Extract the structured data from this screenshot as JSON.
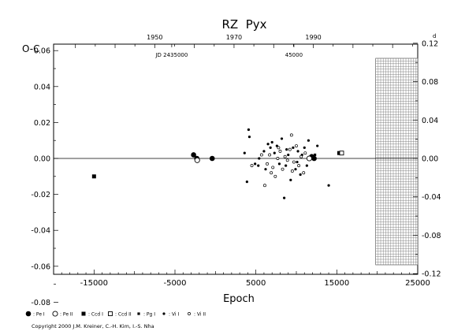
{
  "chart_data": {
    "type": "scatter",
    "title": "RZ  Pyx",
    "xlabel": "Epoch",
    "ylabel": "O-C",
    "right_unit": "d",
    "xlim": [
      -20000,
      25000
    ],
    "ylim": [
      -0.08,
      0.12
    ],
    "x_ticks": [
      {
        "value": -15000,
        "label": "-15000"
      },
      {
        "value": -5000,
        "label": "-5000"
      },
      {
        "value": 5000,
        "label": "5000"
      },
      {
        "value": 15000,
        "label": "15000"
      },
      {
        "value": 25000,
        "label": "25000"
      }
    ],
    "y_ticks_left": [
      {
        "value": -0.08,
        "label": "-0.08"
      },
      {
        "value": -0.06,
        "label": "-0.06"
      },
      {
        "value": -0.04,
        "label": "-0.04"
      },
      {
        "value": -0.02,
        "label": "-0.02"
      },
      {
        "value": 0.0,
        "label": "0.00"
      },
      {
        "value": 0.02,
        "label": "0.02"
      },
      {
        "value": 0.04,
        "label": "0.04"
      },
      {
        "value": 0.06,
        "label": "0.06"
      }
    ],
    "y_ticks_right": [
      {
        "value": -0.12,
        "label": "-0.12"
      },
      {
        "value": -0.08,
        "label": "-0.08"
      },
      {
        "value": -0.04,
        "label": "-0.04"
      },
      {
        "value": 0.0,
        "label": "0.00"
      },
      {
        "value": 0.04,
        "label": "0.04"
      },
      {
        "value": 0.08,
        "label": "0.08"
      },
      {
        "value": 0.12,
        "label": "0.12"
      }
    ],
    "top_year_ticks": [
      {
        "epoch": -7500,
        "label": "1950"
      },
      {
        "epoch": 2300,
        "label": "1970"
      },
      {
        "epoch": 12100,
        "label": "1990"
      }
    ],
    "jd_labels": [
      {
        "epoch": -5400,
        "label": "JD 2435000"
      },
      {
        "epoch": 9700,
        "label": "45000"
      }
    ],
    "zero_line": 0.0,
    "future_grid_from": 19800,
    "series": [
      {
        "name": "Pe I",
        "marker": "filled-circle-large",
        "points": [
          [
            -2700,
            0.002
          ],
          [
            -2300,
            0.0
          ],
          [
            -400,
            0.0
          ],
          [
            11900,
            0.001
          ],
          [
            12200,
            0.0
          ]
        ]
      },
      {
        "name": "Pe II",
        "marker": "open-circle-large",
        "points": [
          [
            -2250,
            -0.001
          ],
          [
            11600,
            0.0
          ]
        ]
      },
      {
        "name": "Ccd I",
        "marker": "filled-square",
        "points": [
          [
            -15000,
            -0.01
          ],
          [
            15300,
            0.003
          ]
        ]
      },
      {
        "name": "Ccd II",
        "marker": "open-square",
        "points": [
          [
            15600,
            0.003
          ]
        ]
      },
      {
        "name": "Pg I",
        "marker": "filled-square-small",
        "points": [
          [
            12300,
            0.002
          ]
        ]
      },
      {
        "name": "Vi I",
        "marker": "filled-dot",
        "points": [
          [
            3600,
            0.003
          ],
          [
            4100,
            0.016
          ],
          [
            4200,
            0.012
          ],
          [
            3900,
            -0.013
          ],
          [
            4900,
            -0.003
          ],
          [
            5400,
            0.0
          ],
          [
            6000,
            0.004
          ],
          [
            6200,
            -0.006
          ],
          [
            6500,
            0.008
          ],
          [
            6800,
            0.006
          ],
          [
            7000,
            0.009
          ],
          [
            7300,
            0.003
          ],
          [
            7600,
            0.007
          ],
          [
            7900,
            -0.003
          ],
          [
            8200,
            0.011
          ],
          [
            8500,
            -0.022
          ],
          [
            8700,
            -0.004
          ],
          [
            9000,
            0.002
          ],
          [
            9300,
            -0.012
          ],
          [
            9600,
            0.006
          ],
          [
            9900,
            -0.006
          ],
          [
            10200,
            0.004
          ],
          [
            10500,
            -0.009
          ],
          [
            10700,
            0.002
          ],
          [
            11000,
            0.006
          ],
          [
            11300,
            -0.004
          ],
          [
            11500,
            0.01
          ],
          [
            12600,
            0.007
          ],
          [
            14000,
            -0.015
          ],
          [
            5300,
            -0.004
          ],
          [
            8800,
            0.005
          ],
          [
            10100,
            -0.002
          ]
        ]
      },
      {
        "name": "Vi II",
        "marker": "open-dot",
        "points": [
          [
            4500,
            -0.004
          ],
          [
            5700,
            0.002
          ],
          [
            6100,
            -0.015
          ],
          [
            6400,
            -0.003
          ],
          [
            6700,
            0.002
          ],
          [
            7100,
            -0.005
          ],
          [
            7400,
            -0.01
          ],
          [
            7700,
            0.0
          ],
          [
            8000,
            0.004
          ],
          [
            8300,
            -0.006
          ],
          [
            8600,
            0.001
          ],
          [
            8900,
            -0.001
          ],
          [
            9200,
            0.005
          ],
          [
            9400,
            0.013
          ],
          [
            9700,
            -0.002
          ],
          [
            10000,
            0.007
          ],
          [
            10300,
            -0.004
          ],
          [
            10600,
            0.001
          ],
          [
            10900,
            -0.008
          ],
          [
            11100,
            0.003
          ],
          [
            6900,
            -0.008
          ],
          [
            7800,
            0.006
          ],
          [
            9500,
            -0.007
          ]
        ]
      }
    ]
  },
  "legend": [
    {
      "marker": "filled-circle-large",
      "label": ": Pe I"
    },
    {
      "marker": "open-circle-large",
      "label": ": Pe II"
    },
    {
      "marker": "filled-square",
      "label": ": Ccd I"
    },
    {
      "marker": "open-square",
      "label": ": Ccd II"
    },
    {
      "marker": "filled-square-small",
      "label": ": Pg I"
    },
    {
      "marker": "filled-dot",
      "label": ": Vi I"
    },
    {
      "marker": "open-dot",
      "label": ": Vi II"
    }
  ],
  "copyright": "Copyright 2000 J.M. Kreiner, C.-H. Kim, I.-S. Nha"
}
